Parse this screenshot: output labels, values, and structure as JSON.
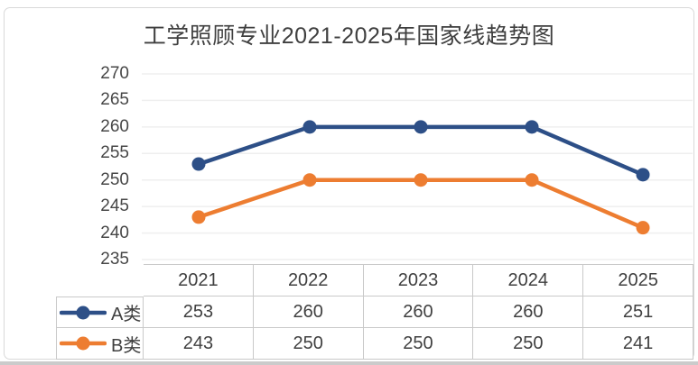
{
  "title": "工学照顾专业2021-2025年国家线趋势图",
  "chart_data": {
    "type": "line",
    "title": "工学照顾专业2021-2025年国家线趋势图",
    "categories": [
      "2021",
      "2022",
      "2023",
      "2024",
      "2025"
    ],
    "series": [
      {
        "name": "A类",
        "values": [
          253,
          260,
          260,
          260,
          251
        ],
        "color": "#2D4F87"
      },
      {
        "name": "B类",
        "values": [
          243,
          250,
          250,
          250,
          241
        ],
        "color": "#ED7D31"
      }
    ],
    "xlabel": "",
    "ylabel": "",
    "ylim": [
      235,
      270
    ],
    "yticks": [
      235,
      240,
      245,
      250,
      255,
      260,
      265,
      270
    ],
    "grid": true,
    "legend_position": "data-table-left",
    "marker": "circle"
  },
  "table": {
    "years": [
      "2021",
      "2022",
      "2023",
      "2024",
      "2025"
    ],
    "rows": [
      {
        "label": "A类",
        "color": "#2D4F87",
        "values": [
          "253",
          "260",
          "260",
          "260",
          "251"
        ]
      },
      {
        "label": "B类",
        "color": "#ED7D31",
        "values": [
          "243",
          "250",
          "250",
          "250",
          "241"
        ]
      }
    ]
  },
  "colors": {
    "grid_line": "#EFEFEF",
    "card_border": "#D9D9D9",
    "table_border": "#C9C9C9",
    "text": "#404040",
    "title_text": "#3F3F3F"
  }
}
